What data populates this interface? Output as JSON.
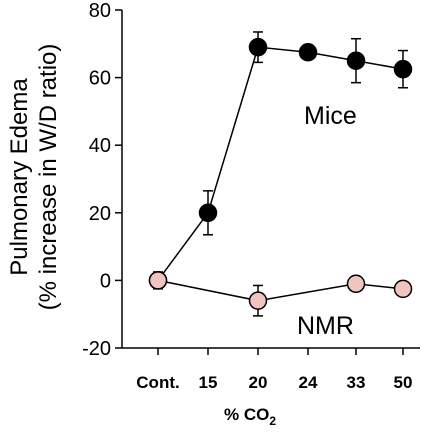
{
  "chart_data": {
    "type": "line",
    "categories": [
      "Cont.",
      "15",
      "20",
      "24",
      "33",
      "50"
    ],
    "ylabel_line1": "Pulmonary Edema",
    "ylabel_line2": "(% increase in W/D ratio)",
    "xlabel_main": "% CO",
    "xlabel_sub": "2",
    "ylim": [
      -20,
      80
    ],
    "yticks": [
      "-20",
      "0",
      "20",
      "40",
      "60",
      "80"
    ],
    "ytick_values": [
      -20,
      0,
      20,
      40,
      60,
      80
    ],
    "series": [
      {
        "name": "Mice",
        "marker_color": "#000000",
        "values": [
          0,
          20,
          69,
          67.5,
          65,
          62.5
        ],
        "errors": [
          2,
          6.5,
          4.5,
          1.5,
          6.5,
          5.5
        ]
      },
      {
        "name": "NMR",
        "marker_color": "#f2c4c0",
        "values": [
          0,
          null,
          -6,
          null,
          -1,
          -2.5
        ],
        "errors": [
          2.5,
          null,
          4.5,
          null,
          1.5,
          1.5
        ]
      }
    ],
    "grid": false,
    "legend": "inline labels beside series"
  }
}
